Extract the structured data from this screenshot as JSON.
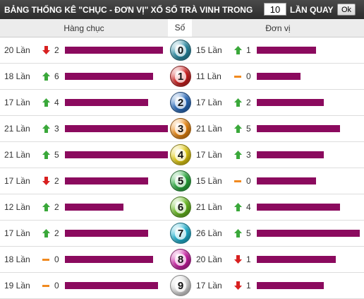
{
  "header": {
    "title": "BẢNG THỐNG KÊ \"CHỤC - ĐƠN VỊ\" XỔ SỐ TRÀ VINH TRONG",
    "input_value": "10",
    "suffix": "LẦN QUAY",
    "button": "Ok"
  },
  "columns": {
    "tens": "Hàng chục",
    "digit": "Số",
    "units": "Đơn vị"
  },
  "bar_color": "#8b0a5e",
  "rows": [
    {
      "digit": "0",
      "color": "#2a8fa8",
      "tens": {
        "count": 20,
        "label": "20 Lần",
        "trend": "down",
        "delta": "2"
      },
      "units": {
        "count": 15,
        "label": "15 Lần",
        "trend": "up",
        "delta": "1"
      }
    },
    {
      "digit": "1",
      "color": "#d42020",
      "tens": {
        "count": 18,
        "label": "18 Lần",
        "trend": "up",
        "delta": "6"
      },
      "units": {
        "count": 11,
        "label": "11 Lần",
        "trend": "flat",
        "delta": "0"
      }
    },
    {
      "digit": "2",
      "color": "#2a6fc4",
      "tens": {
        "count": 17,
        "label": "17 Lần",
        "trend": "up",
        "delta": "4"
      },
      "units": {
        "count": 17,
        "label": "17 Lần",
        "trend": "up",
        "delta": "2"
      }
    },
    {
      "digit": "3",
      "color": "#f08a10",
      "tens": {
        "count": 21,
        "label": "21 Lần",
        "trend": "up",
        "delta": "3"
      },
      "units": {
        "count": 21,
        "label": "21 Lần",
        "trend": "up",
        "delta": "5"
      }
    },
    {
      "digit": "4",
      "color": "#e8d010",
      "tens": {
        "count": 21,
        "label": "21 Lần",
        "trend": "up",
        "delta": "5"
      },
      "units": {
        "count": 17,
        "label": "17 Lần",
        "trend": "up",
        "delta": "3"
      }
    },
    {
      "digit": "5",
      "color": "#2ab040",
      "tens": {
        "count": 17,
        "label": "17 Lần",
        "trend": "down",
        "delta": "2"
      },
      "units": {
        "count": 15,
        "label": "15 Lần",
        "trend": "flat",
        "delta": "0"
      }
    },
    {
      "digit": "6",
      "color": "#6ac020",
      "tens": {
        "count": 12,
        "label": "12 Lần",
        "trend": "up",
        "delta": "2"
      },
      "units": {
        "count": 21,
        "label": "21 Lần",
        "trend": "up",
        "delta": "4"
      }
    },
    {
      "digit": "7",
      "color": "#20b8d8",
      "tens": {
        "count": 17,
        "label": "17 Lần",
        "trend": "up",
        "delta": "2"
      },
      "units": {
        "count": 26,
        "label": "26 Lần",
        "trend": "up",
        "delta": "5"
      }
    },
    {
      "digit": "8",
      "color": "#d020a8",
      "tens": {
        "count": 18,
        "label": "18 Lần",
        "trend": "flat",
        "delta": "0"
      },
      "units": {
        "count": 20,
        "label": "20 Lần",
        "trend": "down",
        "delta": "1"
      }
    },
    {
      "digit": "9",
      "color": "#e0e0e0",
      "tens": {
        "count": 19,
        "label": "19 Lần",
        "trend": "flat",
        "delta": "0"
      },
      "units": {
        "count": 17,
        "label": "17 Lần",
        "trend": "down",
        "delta": "1"
      }
    }
  ]
}
